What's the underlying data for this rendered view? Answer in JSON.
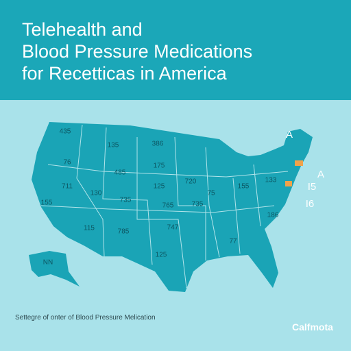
{
  "header": {
    "title_lines": [
      "Telehealth and",
      "Blood Pressure Medications",
      "for Recetticas in America"
    ]
  },
  "map": {
    "state_labels": [
      "435",
      "135",
      "386",
      "76",
      "175",
      "485",
      "711",
      "130",
      "720",
      "125",
      "735",
      "75",
      "155",
      "765",
      "735",
      "115",
      "785",
      "747",
      "125",
      "NN",
      "133",
      "186",
      "77",
      "155"
    ],
    "side_labels": [
      "A",
      "A",
      "I5",
      "I6"
    ]
  },
  "footer": {
    "caption": "Settegre of onter of Blood Pressure Melication",
    "logo": "Calfmota"
  }
}
